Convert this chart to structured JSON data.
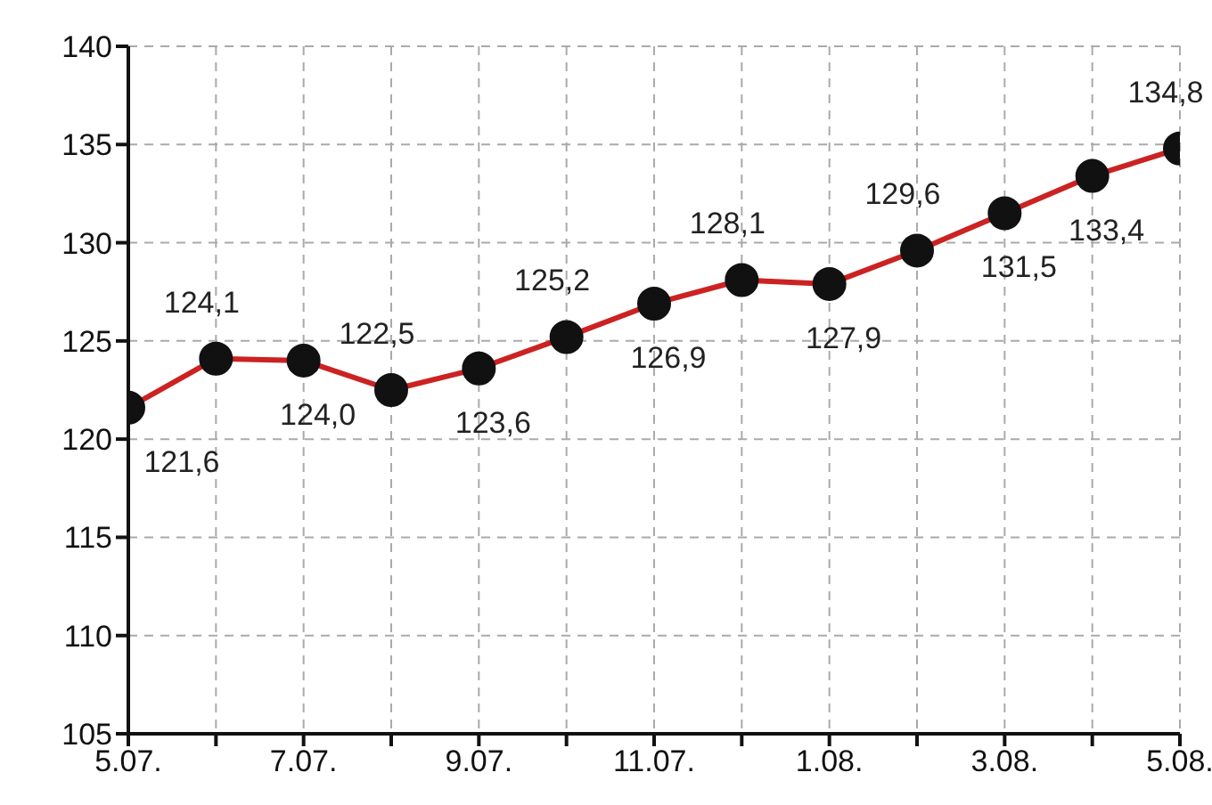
{
  "chart_data": {
    "type": "line",
    "categories": [
      "5.07.",
      null,
      "7.07.",
      null,
      "9.07.",
      null,
      "11.07.",
      null,
      "1.08.",
      null,
      "3.08.",
      null,
      "5.08."
    ],
    "series": [
      {
        "color": "#cc2222",
        "values": [
          121.6,
          124.1,
          124.0,
          122.5,
          123.6,
          125.2,
          126.9,
          128.1,
          127.9,
          129.6,
          131.5,
          133.4,
          134.8
        ],
        "value_labels": [
          "121,6",
          "124,1",
          "124,0",
          "122,5",
          "123,6",
          "125,2",
          "126,9",
          "128,1",
          "127,9",
          "129,6",
          "131,5",
          "133,4",
          "134,8"
        ]
      }
    ],
    "ylim": [
      105,
      140
    ],
    "yticks": [
      105,
      110,
      115,
      120,
      125,
      130,
      135,
      140
    ],
    "grid": true,
    "marker": "circle",
    "line_style": "solid",
    "legend": false
  }
}
